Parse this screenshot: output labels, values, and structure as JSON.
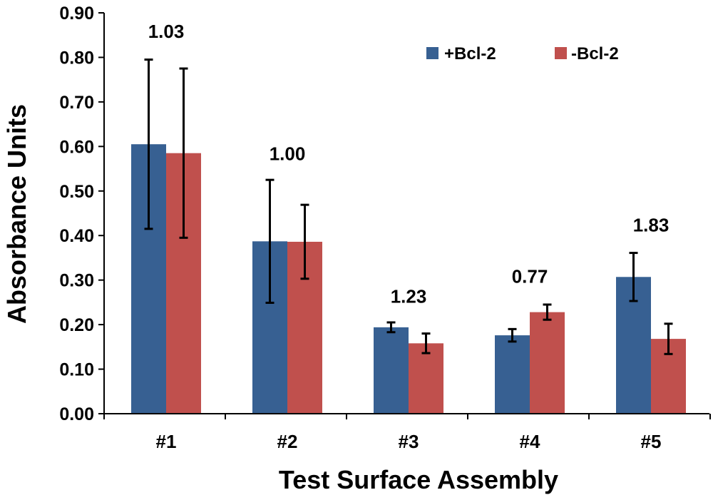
{
  "chart_data": {
    "type": "bar",
    "title": "",
    "xlabel": "Test Surface Assembly",
    "ylabel": "Absorbance Units",
    "categories": [
      "#1",
      "#2",
      "#3",
      "#4",
      "#5"
    ],
    "ylim": [
      0,
      0.9
    ],
    "yticks": [
      "0.00",
      "0.10",
      "0.20",
      "0.30",
      "0.40",
      "0.50",
      "0.60",
      "0.70",
      "0.80",
      "0.90"
    ],
    "series": [
      {
        "name": "+Bcl-2",
        "color": "#376092",
        "values": [
          0.605,
          0.387,
          0.194,
          0.176,
          0.307
        ],
        "errors": [
          0.19,
          0.138,
          0.011,
          0.014,
          0.054
        ]
      },
      {
        "name": "-Bcl-2",
        "color": "#C0504D",
        "values": [
          0.585,
          0.386,
          0.158,
          0.228,
          0.168
        ],
        "errors": [
          0.19,
          0.083,
          0.022,
          0.017,
          0.034
        ]
      }
    ],
    "annotations": [
      "1.03",
      "1.00",
      "1.23",
      "0.77",
      "1.83"
    ],
    "annotation_positions": [
      0.86,
      0.585,
      0.265,
      0.31,
      0.425
    ],
    "grid": false,
    "legend": "top-right"
  }
}
